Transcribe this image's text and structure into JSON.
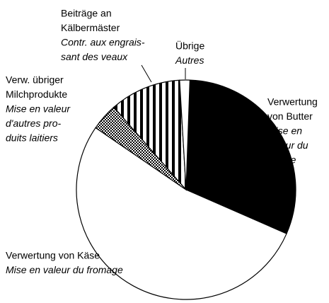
{
  "chart_data": {
    "type": "pie",
    "categories": [
      [
        "Verwertung",
        "von Butter"
      ],
      [
        "Verwertung von Käse"
      ],
      [
        "Verw. übriger",
        "Milchprodukte"
      ],
      [
        "Beiträge an",
        "Kälbermäster"
      ],
      [
        "Übrige"
      ]
    ],
    "categories_fr": [
      [
        "Mise en",
        "valeur du",
        "beurre"
      ],
      [
        "Mise en valeur du fromage"
      ],
      [
        "Mise en valeur",
        "d'autres pro-",
        "duits laitiers"
      ],
      [
        "Contr. aux engrais-",
        "sant des veaux"
      ],
      [
        "Autres"
      ]
    ],
    "values": [
      31,
      53,
      4,
      10.5,
      1.5
    ],
    "patterns": [
      "solid",
      "white",
      "crosshatch",
      "stripes",
      "white"
    ]
  }
}
